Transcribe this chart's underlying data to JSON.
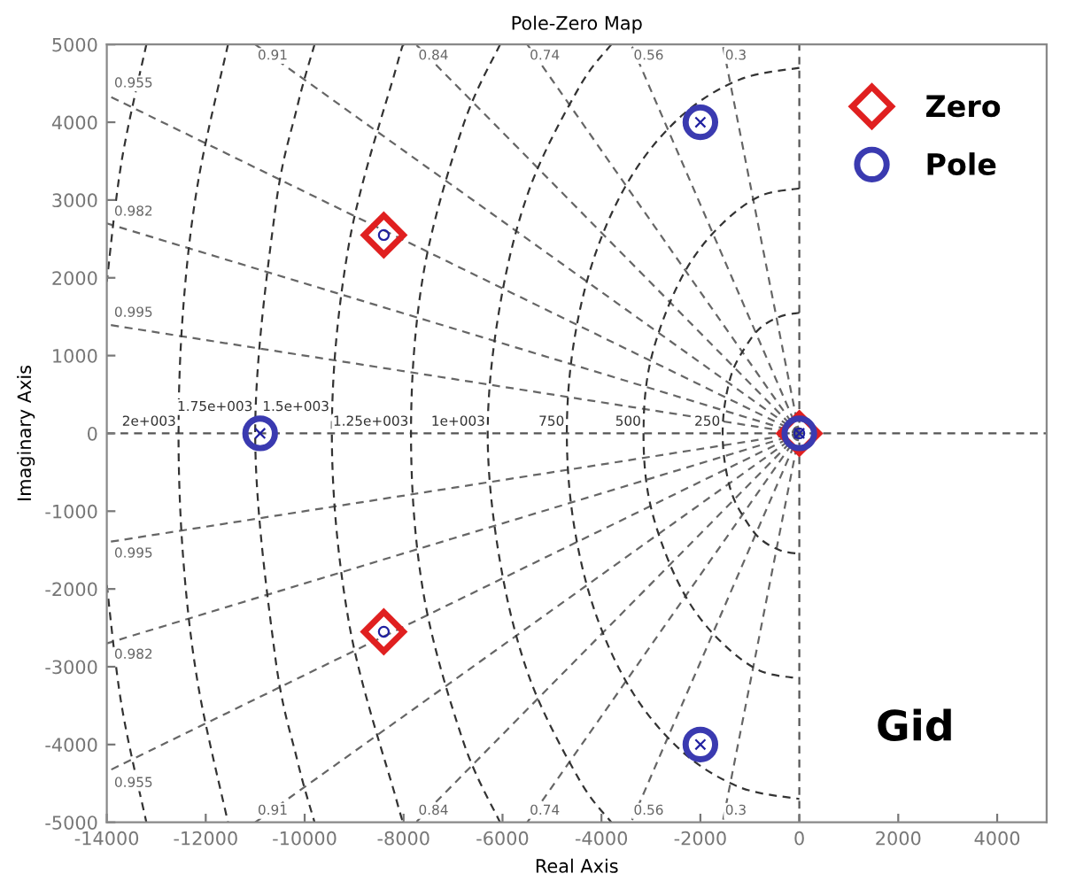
{
  "chart_data": {
    "type": "scatter",
    "title": "Pole-Zero Map",
    "xlabel": "Real Axis",
    "ylabel": "Imaginary Axis",
    "xlim": [
      -14000,
      5000
    ],
    "xticks": [
      -14000,
      -12000,
      -10000,
      -8000,
      -6000,
      -4000,
      -2000,
      0,
      2000,
      4000
    ],
    "ylim": [
      -5000,
      5000
    ],
    "yticks": [
      -5000,
      -4000,
      -3000,
      -2000,
      -1000,
      0,
      1000,
      2000,
      3000,
      4000,
      5000
    ],
    "grid": false,
    "legend": "top right",
    "series": [
      {
        "type": "line",
        "color": "#555555",
        "line_style": "dashed",
        "x": [
          -14000,
          5000
        ],
        "values": [
          0,
          0
        ]
      },
      {
        "type": "line",
        "color": "#555555",
        "line_style": "dashed",
        "x": [
          0,
          0
        ],
        "values": [
          -5000,
          5000
        ]
      },
      {
        "type": "line",
        "name": "0.91",
        "color": "#666666",
        "line_style": "dashed",
        "x": [
          0,
          -11000
        ],
        "values": [
          0,
          5000
        ]
      },
      {
        "type": "line",
        "name": "0.84",
        "color": "#666666",
        "line_style": "dashed",
        "x": [
          0,
          -7750
        ],
        "values": [
          0,
          5000
        ]
      },
      {
        "type": "line",
        "name": "0.74",
        "color": "#666666",
        "line_style": "dashed",
        "x": [
          0,
          -5500
        ],
        "values": [
          0,
          5000
        ]
      },
      {
        "type": "line",
        "name": "0.56",
        "color": "#666666",
        "line_style": "dashed",
        "x": [
          0,
          -3400
        ],
        "values": [
          0,
          5000
        ]
      },
      {
        "type": "line",
        "name": "0.3",
        "color": "#666666",
        "line_style": "dashed",
        "x": [
          0,
          -1550
        ],
        "values": [
          0,
          5000
        ]
      },
      {
        "type": "line",
        "name": "0.955",
        "color": "#666666",
        "line_style": "dashed",
        "x": [
          0,
          -14000
        ],
        "values": [
          0,
          4350
        ]
      },
      {
        "type": "line",
        "name": "0.982",
        "color": "#666666",
        "line_style": "dashed",
        "x": [
          0,
          -14000
        ],
        "values": [
          0,
          2700
        ]
      },
      {
        "type": "line",
        "name": "0.995",
        "color": "#666666",
        "line_style": "dashed",
        "x": [
          0,
          -14000
        ],
        "values": [
          0,
          1400
        ]
      },
      {
        "type": "line",
        "name": "0.995",
        "color": "#666666",
        "line_style": "dashed",
        "x": [
          0,
          -14000
        ],
        "values": [
          0,
          -1400
        ]
      },
      {
        "type": "line",
        "name": "0.982",
        "color": "#666666",
        "line_style": "dashed",
        "x": [
          0,
          -14000
        ],
        "values": [
          0,
          -2700
        ]
      },
      {
        "type": "line",
        "name": "0.955",
        "color": "#666666",
        "line_style": "dashed",
        "x": [
          0,
          -14000
        ],
        "values": [
          0,
          -4350
        ]
      },
      {
        "type": "line",
        "name": "0.91",
        "color": "#666666",
        "line_style": "dashed",
        "x": [
          0,
          -11000
        ],
        "values": [
          0,
          -5000
        ]
      },
      {
        "type": "line",
        "name": "0.84",
        "color": "#666666",
        "line_style": "dashed",
        "x": [
          0,
          -7750
        ],
        "values": [
          0,
          -5000
        ]
      },
      {
        "type": "line",
        "name": "0.74",
        "color": "#666666",
        "line_style": "dashed",
        "x": [
          0,
          -5500
        ],
        "values": [
          0,
          -5000
        ]
      },
      {
        "type": "line",
        "name": "0.56",
        "color": "#666666",
        "line_style": "dashed",
        "x": [
          0,
          -3400
        ],
        "values": [
          0,
          -5000
        ]
      },
      {
        "type": "line",
        "name": "0.3",
        "color": "#666666",
        "line_style": "dashed",
        "x": [
          0,
          -1550
        ],
        "values": [
          0,
          -5000
        ]
      },
      {
        "type": "line",
        "name": "250",
        "color": "#333333",
        "line_style": "dashed",
        "x": [
          0,
          -400,
          -800,
          -1100,
          -1350,
          -1500,
          -1550,
          -1500,
          -1350,
          -1100,
          -800,
          -400,
          0
        ],
        "values": [
          1550,
          1500,
          1350,
          1100,
          800,
          400,
          0,
          -400,
          -800,
          -1100,
          -1350,
          -1500,
          -1550
        ]
      },
      {
        "type": "line",
        "name": "500",
        "color": "#333333",
        "line_style": "dashed",
        "x": [
          0,
          -800,
          -1550,
          -2200,
          -2700,
          -3050,
          -3150,
          -3050,
          -2700,
          -2200,
          -1550,
          -800,
          0
        ],
        "values": [
          3150,
          3050,
          2700,
          2200,
          1550,
          800,
          0,
          -800,
          -1550,
          -2200,
          -2700,
          -3050,
          -3150
        ]
      },
      {
        "type": "line",
        "name": "750",
        "color": "#333333",
        "line_style": "dashed",
        "x": [
          0,
          -1200,
          -2350,
          -3350,
          -4100,
          -4550,
          -4700,
          -4550,
          -4100,
          -3350,
          -2350,
          -1200,
          0
        ],
        "values": [
          4700,
          4550,
          4100,
          3350,
          2350,
          1200,
          0,
          -1200,
          -2350,
          -3350,
          -4100,
          -4550,
          -4700
        ]
      },
      {
        "type": "line",
        "name": "1e+003",
        "color": "#333333",
        "line_style": "dashed",
        "x": [
          -3800,
          -4450,
          -5450,
          -6050,
          -6300,
          -6050,
          -5450,
          -4450,
          -3800
        ],
        "values": [
          5000,
          4450,
          3150,
          1650,
          0,
          -1650,
          -3150,
          -4450,
          -5000
        ]
      },
      {
        "type": "line",
        "name": "1.25e+003",
        "color": "#333333",
        "line_style": "dashed",
        "x": [
          -6050,
          -6800,
          -7600,
          -7850,
          -7600,
          -6800,
          -6050
        ],
        "values": [
          5000,
          3950,
          2050,
          0,
          -2050,
          -3950,
          -5000
        ]
      },
      {
        "type": "line",
        "name": "1.5e+003",
        "color": "#333333",
        "line_style": "dashed",
        "x": [
          -8000,
          -8150,
          -9100,
          -9450,
          -9100,
          -8150,
          -8000
        ],
        "values": [
          5000,
          4700,
          2450,
          0,
          -2450,
          -4700,
          -5000
        ]
      },
      {
        "type": "line",
        "name": "1.75e+003",
        "color": "#333333",
        "line_style": "dashed",
        "x": [
          -9800,
          -10150,
          -10600,
          -11000,
          -10600,
          -10150,
          -9800
        ],
        "values": [
          5000,
          4200,
          2850,
          0,
          -2850,
          -4200,
          -5000
        ]
      },
      {
        "type": "line",
        "name": "2e+003",
        "color": "#333333",
        "line_style": "dashed",
        "x": [
          -11550,
          -12150,
          -12450,
          -12550,
          -12450,
          -12150,
          -11550
        ],
        "values": [
          5000,
          3250,
          1650,
          0,
          -1650,
          -3250,
          -5000
        ]
      },
      {
        "type": "line",
        "color": "#333333",
        "line_style": "dashed",
        "x": [
          -13200,
          -13700,
          -14000
        ],
        "values": [
          5000,
          3500,
          1950
        ]
      },
      {
        "type": "line",
        "color": "#333333",
        "line_style": "dashed",
        "x": [
          -14000,
          -13700,
          -13200
        ],
        "values": [
          -1950,
          -3500,
          -5000
        ]
      },
      {
        "name": "Zero",
        "color": "#e02020",
        "marker": "diamond",
        "x": [
          -8400,
          -8400,
          0
        ],
        "values": [
          2550,
          -2550,
          0
        ]
      },
      {
        "name": "Pole",
        "color": "#3a3ab0",
        "marker": "circle",
        "x": [
          -10900,
          -2000,
          -2000,
          0
        ],
        "values": [
          0,
          4000,
          -4000,
          0
        ]
      },
      {
        "color": "#2020a0",
        "marker": "circle",
        "x": [
          -8400,
          -8400,
          0
        ],
        "values": [
          2550,
          -2550,
          0
        ]
      },
      {
        "color": "#2020a0",
        "marker": "cross",
        "x": [
          -10900,
          -2000,
          -2000,
          0
        ],
        "values": [
          0,
          4000,
          -4000,
          0
        ]
      }
    ],
    "annotations": [
      "Gid"
    ]
  }
}
